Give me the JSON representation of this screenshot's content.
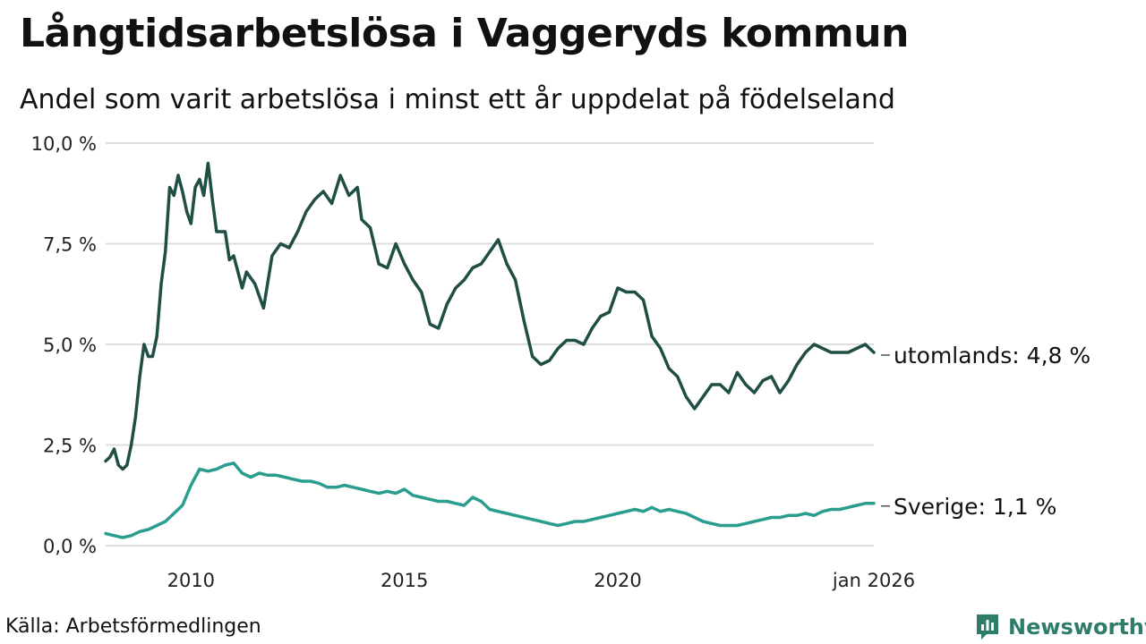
{
  "chart_data": {
    "type": "line",
    "title": "Långtidsarbetslösa i Vaggeryds kommun",
    "subtitle": "Andel som varit arbetslösa i minst ett år uppdelat på födelseland",
    "xlabel": "",
    "ylabel": "",
    "xlim": [
      2008.0,
      2026.0
    ],
    "ylim": [
      0,
      10
    ],
    "y_ticks": [
      0,
      2.5,
      5,
      7.5,
      10
    ],
    "y_tick_labels": [
      "0,0 %",
      "2,5 %",
      "5,0 %",
      "7,5 %",
      "10,0 %"
    ],
    "x_ticks": [
      2010,
      2015,
      2020,
      2026
    ],
    "x_tick_labels": [
      "2010",
      "2015",
      "2020",
      "jan 2026"
    ],
    "grid": true,
    "series": [
      {
        "name": "utomlands",
        "end_label": "utomlands: 4,8 %",
        "color": "#1f4e44",
        "x": [
          2008.0,
          2008.1,
          2008.2,
          2008.3,
          2008.4,
          2008.5,
          2008.6,
          2008.7,
          2008.8,
          2008.9,
          2009.0,
          2009.1,
          2009.2,
          2009.3,
          2009.4,
          2009.5,
          2009.6,
          2009.7,
          2009.8,
          2009.9,
          2010.0,
          2010.1,
          2010.2,
          2010.3,
          2010.4,
          2010.5,
          2010.6,
          2010.7,
          2010.8,
          2010.9,
          2011.0,
          2011.1,
          2011.2,
          2011.3,
          2011.5,
          2011.7,
          2011.9,
          2012.1,
          2012.3,
          2012.5,
          2012.7,
          2012.9,
          2013.1,
          2013.3,
          2013.5,
          2013.7,
          2013.9,
          2014.0,
          2014.2,
          2014.4,
          2014.6,
          2014.8,
          2015.0,
          2015.2,
          2015.4,
          2015.6,
          2015.8,
          2016.0,
          2016.2,
          2016.4,
          2016.6,
          2016.8,
          2017.0,
          2017.2,
          2017.4,
          2017.6,
          2017.8,
          2018.0,
          2018.2,
          2018.4,
          2018.6,
          2018.8,
          2019.0,
          2019.2,
          2019.4,
          2019.6,
          2019.8,
          2020.0,
          2020.2,
          2020.4,
          2020.6,
          2020.8,
          2021.0,
          2021.2,
          2021.4,
          2021.6,
          2021.8,
          2022.0,
          2022.2,
          2022.4,
          2022.6,
          2022.8,
          2023.0,
          2023.2,
          2023.4,
          2023.6,
          2023.8,
          2024.0,
          2024.2,
          2024.4,
          2024.6,
          2024.8,
          2025.0,
          2025.2,
          2025.4,
          2025.6,
          2025.8,
          2025.9,
          2026.0
        ],
        "values": [
          2.1,
          2.2,
          2.4,
          2.0,
          1.9,
          2.0,
          2.5,
          3.2,
          4.2,
          5.0,
          4.7,
          4.7,
          5.2,
          6.5,
          7.3,
          8.9,
          8.7,
          9.2,
          8.8,
          8.3,
          8.0,
          8.9,
          9.1,
          8.7,
          9.5,
          8.6,
          7.8,
          7.8,
          7.8,
          7.1,
          7.2,
          6.8,
          6.4,
          6.8,
          6.5,
          5.9,
          7.2,
          7.5,
          7.4,
          7.8,
          8.3,
          8.6,
          8.8,
          8.5,
          9.2,
          8.7,
          8.9,
          8.1,
          7.9,
          7.0,
          6.9,
          7.5,
          7.0,
          6.6,
          6.3,
          5.5,
          5.4,
          6.0,
          6.4,
          6.6,
          6.9,
          7.0,
          7.3,
          7.6,
          7.0,
          6.6,
          5.6,
          4.7,
          4.5,
          4.6,
          4.9,
          5.1,
          5.1,
          5.0,
          5.4,
          5.7,
          5.8,
          6.4,
          6.3,
          6.3,
          6.1,
          5.2,
          4.9,
          4.4,
          4.2,
          3.7,
          3.4,
          3.7,
          4.0,
          4.0,
          3.8,
          4.3,
          4.0,
          3.8,
          4.1,
          4.2,
          3.8,
          4.1,
          4.5,
          4.8,
          5.0,
          4.9,
          4.8,
          4.8,
          4.8,
          4.9,
          5.0,
          4.9,
          4.8
        ]
      },
      {
        "name": "Sverige",
        "end_label": "Sverige: 1,1 %",
        "color": "#2a9d8f",
        "x": [
          2008.0,
          2008.2,
          2008.4,
          2008.6,
          2008.8,
          2009.0,
          2009.2,
          2009.4,
          2009.6,
          2009.8,
          2010.0,
          2010.2,
          2010.4,
          2010.6,
          2010.8,
          2011.0,
          2011.2,
          2011.4,
          2011.6,
          2011.8,
          2012.0,
          2012.2,
          2012.4,
          2012.6,
          2012.8,
          2013.0,
          2013.2,
          2013.4,
          2013.6,
          2013.8,
          2014.0,
          2014.2,
          2014.4,
          2014.6,
          2014.8,
          2015.0,
          2015.2,
          2015.4,
          2015.6,
          2015.8,
          2016.0,
          2016.2,
          2016.4,
          2016.6,
          2016.8,
          2017.0,
          2017.2,
          2017.4,
          2017.6,
          2017.8,
          2018.0,
          2018.2,
          2018.4,
          2018.6,
          2018.8,
          2019.0,
          2019.2,
          2019.4,
          2019.6,
          2019.8,
          2020.0,
          2020.2,
          2020.4,
          2020.6,
          2020.8,
          2021.0,
          2021.2,
          2021.4,
          2021.6,
          2021.8,
          2022.0,
          2022.2,
          2022.4,
          2022.6,
          2022.8,
          2023.0,
          2023.2,
          2023.4,
          2023.6,
          2023.8,
          2024.0,
          2024.2,
          2024.4,
          2024.6,
          2024.8,
          2025.0,
          2025.2,
          2025.4,
          2025.6,
          2025.8,
          2026.0
        ],
        "values": [
          0.3,
          0.25,
          0.2,
          0.25,
          0.35,
          0.4,
          0.5,
          0.6,
          0.8,
          1.0,
          1.5,
          1.9,
          1.85,
          1.9,
          2.0,
          2.05,
          1.8,
          1.7,
          1.8,
          1.75,
          1.75,
          1.7,
          1.65,
          1.6,
          1.6,
          1.55,
          1.45,
          1.45,
          1.5,
          1.45,
          1.4,
          1.35,
          1.3,
          1.35,
          1.3,
          1.4,
          1.25,
          1.2,
          1.15,
          1.1,
          1.1,
          1.05,
          1.0,
          1.2,
          1.1,
          0.9,
          0.85,
          0.8,
          0.75,
          0.7,
          0.65,
          0.6,
          0.55,
          0.5,
          0.55,
          0.6,
          0.6,
          0.65,
          0.7,
          0.75,
          0.8,
          0.85,
          0.9,
          0.85,
          0.95,
          0.85,
          0.9,
          0.85,
          0.8,
          0.7,
          0.6,
          0.55,
          0.5,
          0.5,
          0.5,
          0.55,
          0.6,
          0.65,
          0.7,
          0.7,
          0.75,
          0.75,
          0.8,
          0.75,
          0.85,
          0.9,
          0.9,
          0.95,
          1.0,
          1.05,
          1.05
        ]
      }
    ]
  },
  "footer": {
    "source": "Källa: Arbetsförmedlingen",
    "brand": "Newsworthy"
  },
  "colors": {
    "grid": "#dddddd",
    "brand": "#2e7d6b"
  }
}
